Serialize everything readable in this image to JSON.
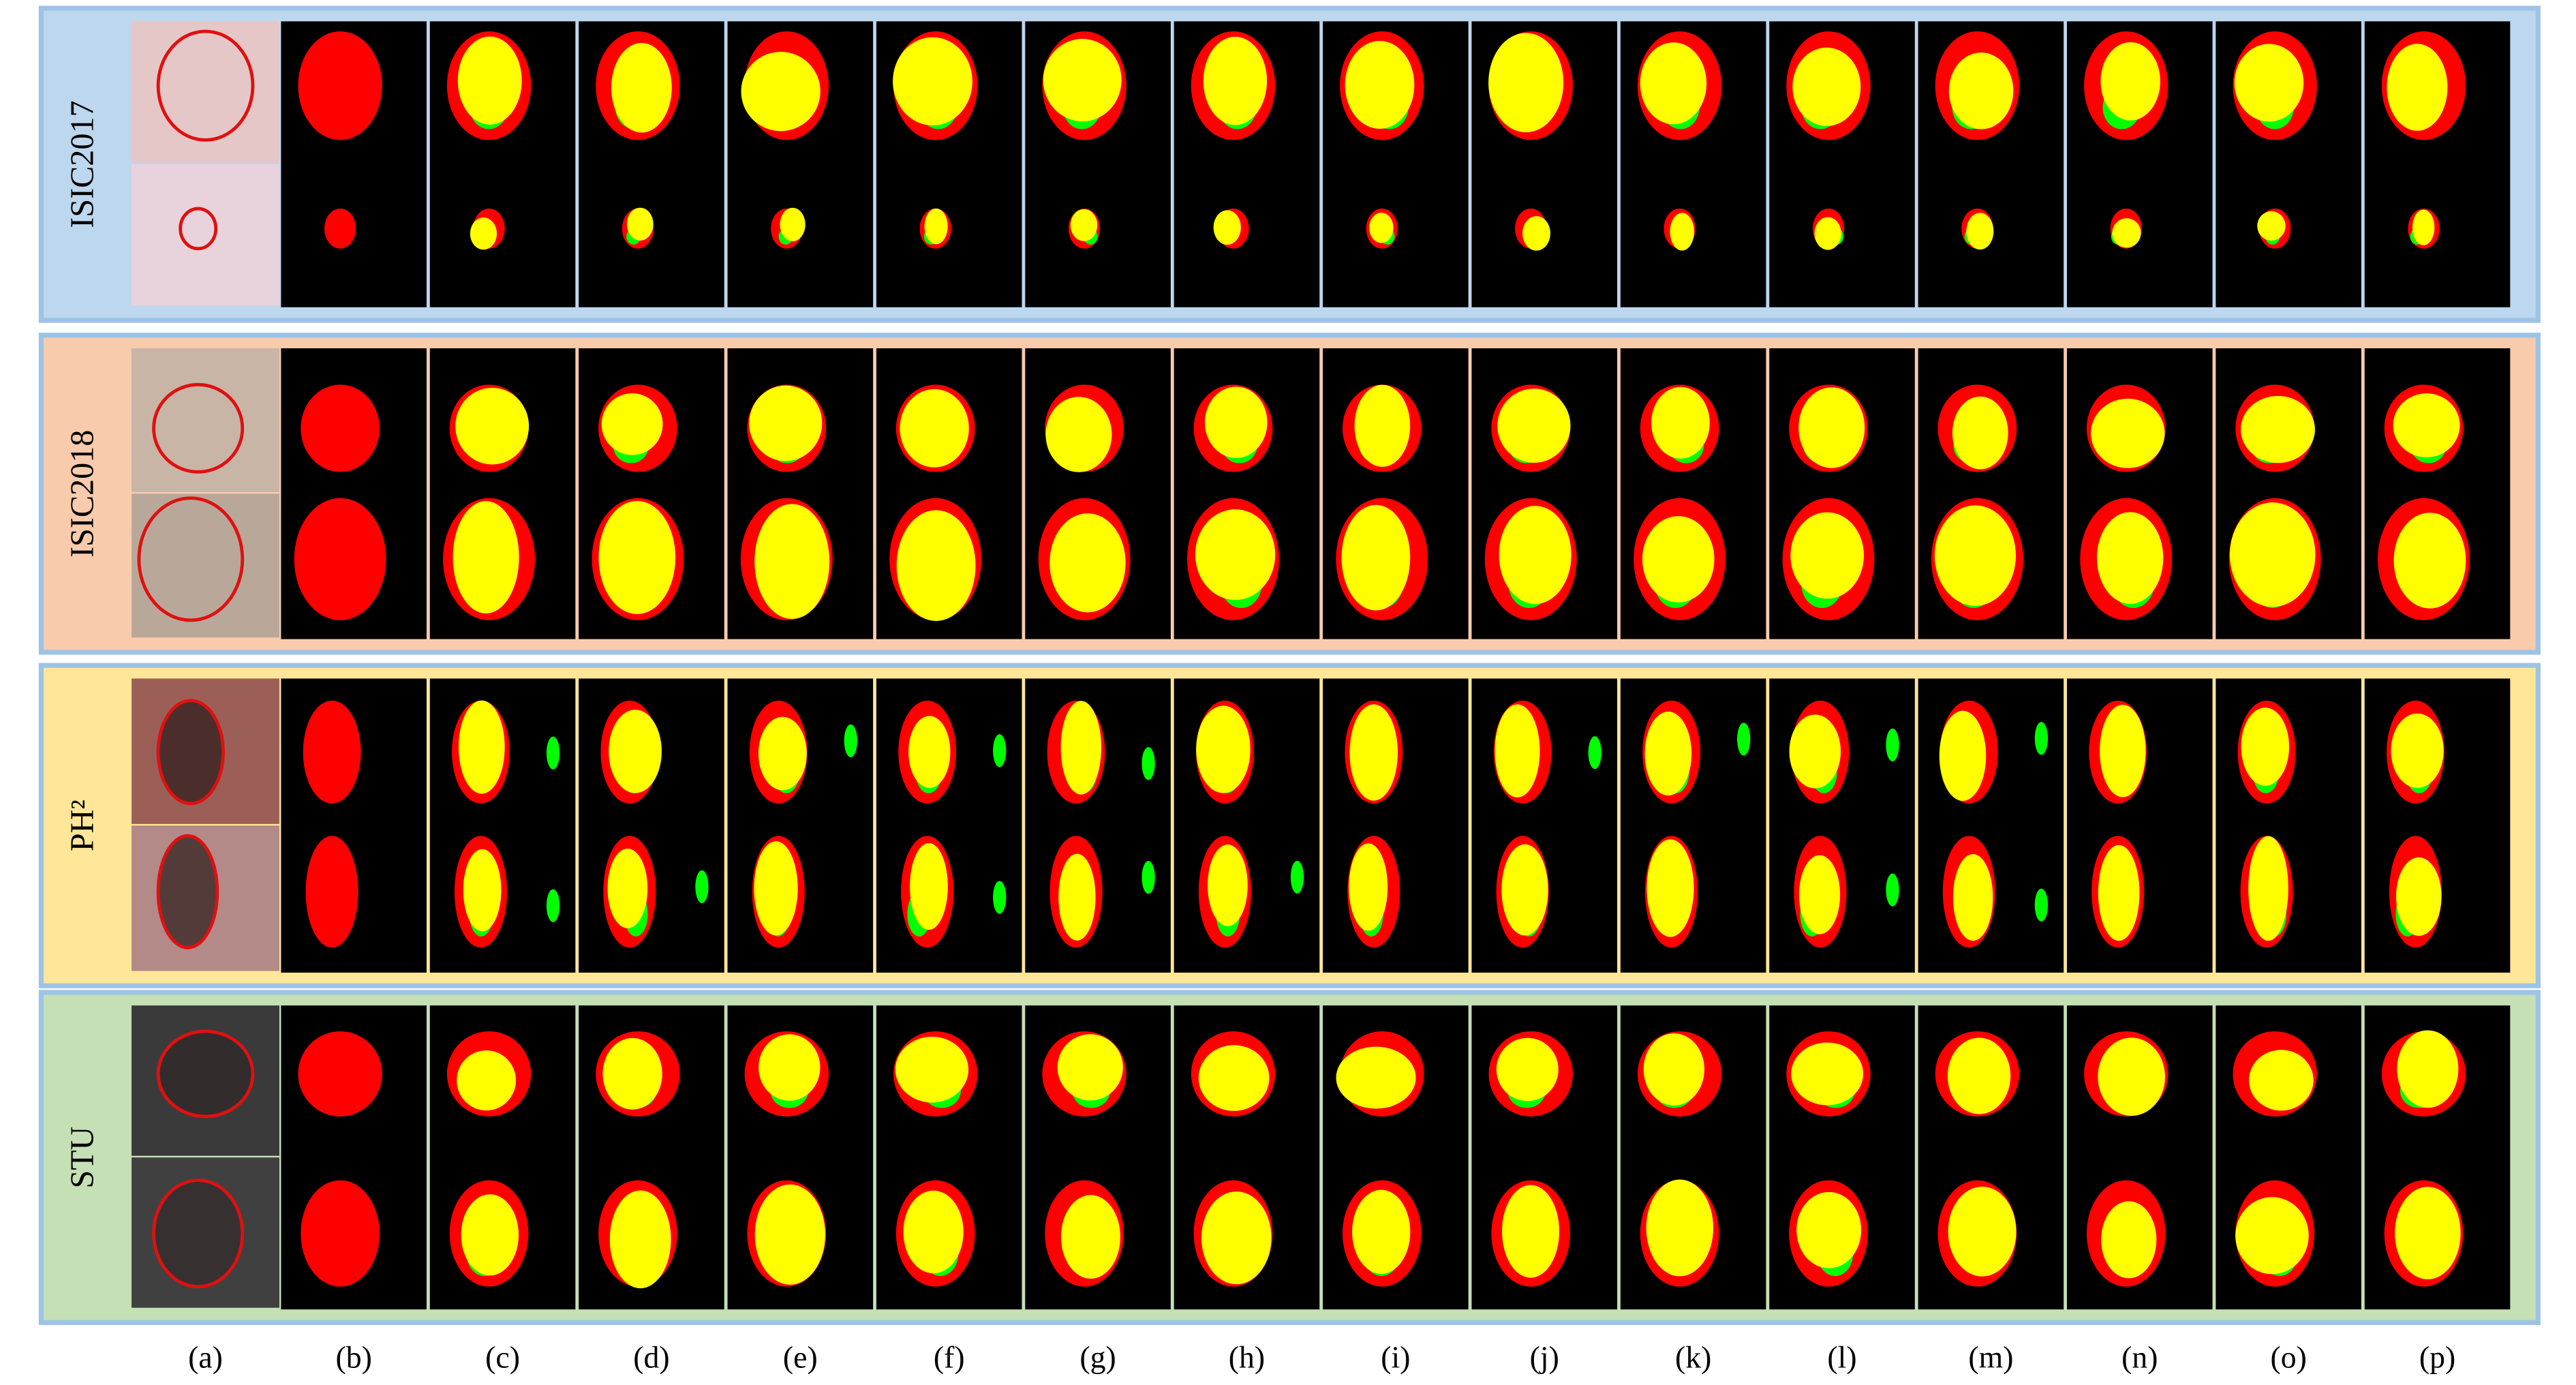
{
  "panels": [
    {
      "label": "ISIC2017"
    },
    {
      "label": "ISIC2018"
    },
    {
      "label": "PH²"
    },
    {
      "label": "STU"
    }
  ],
  "columns": [
    "(a)",
    "(b)",
    "(c)",
    "(d)",
    "(e)",
    "(f)",
    "(g)",
    "(h)",
    "(i)",
    "(j)",
    "(k)",
    "(l)",
    "(m)",
    "(n)",
    "(o)",
    "(p)"
  ]
}
